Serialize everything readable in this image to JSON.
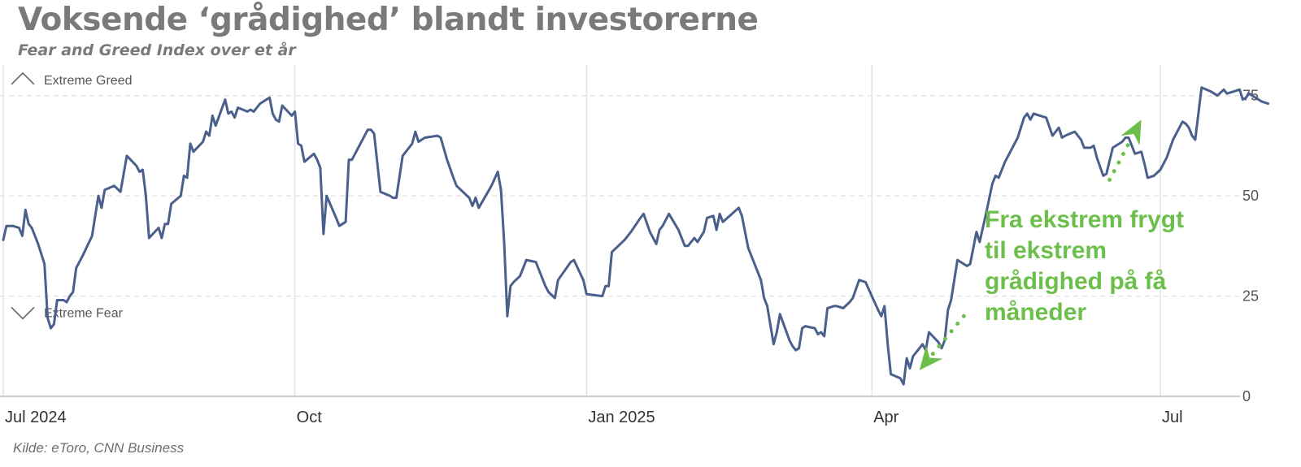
{
  "header": {
    "title": "Voksende ‘grådighed’ blandt investorerne",
    "subtitle": "Fear and Greed Index over et år"
  },
  "footer": {
    "source": "Kilde: eToro, CNN Business"
  },
  "colors": {
    "line": "#4a5f8b",
    "annotation": "#6cbf4a",
    "grid": "#e3e3e3",
    "title": "#7a7a7a"
  },
  "chart_data": {
    "type": "line",
    "title": "Voksende ‘grådighed’ blandt investorerne",
    "subtitle": "Fear and Greed Index over et år",
    "xlabel": "",
    "ylabel": "",
    "ylim": [
      0,
      80
    ],
    "xlim": [
      "2024-07-01",
      "2025-07-28"
    ],
    "y_ticks": [
      0,
      25,
      50,
      75
    ],
    "y_axis_side": "right",
    "x_ticks": [
      {
        "date": "2024-07-01",
        "label": "Jul 2024"
      },
      {
        "date": "2024-10-01",
        "label": "Oct"
      },
      {
        "date": "2025-01-01",
        "label": "Jan 2025"
      },
      {
        "date": "2025-04-01",
        "label": "Apr"
      },
      {
        "date": "2025-07-01",
        "label": "Jul"
      }
    ],
    "grid": {
      "vertical": true,
      "horizontal_dashed": true
    },
    "zones": [
      {
        "label": "Extreme Greed",
        "icon": "chevron-up-icon",
        "y": 79
      },
      {
        "label": "Extreme Fear",
        "icon": "chevron-down-icon",
        "y": 21
      }
    ],
    "annotation": {
      "lines": [
        "Fra ekstrem frygt",
        "til ekstrem",
        "grådighed på få",
        "måneder"
      ],
      "arrows": [
        {
          "from": [
            "2025-04-30",
            20
          ],
          "to": [
            "2025-04-16",
            6.5
          ]
        },
        {
          "from": [
            "2025-06-15",
            54
          ],
          "to": [
            "2025-06-25",
            69
          ]
        }
      ]
    },
    "series": [
      {
        "points": [
          [
            "2024-07-01",
            39
          ],
          [
            "2024-07-02",
            42.5
          ],
          [
            "2024-07-04",
            42.5
          ],
          [
            "2024-07-06",
            42
          ],
          [
            "2024-07-07",
            40
          ],
          [
            "2024-07-08",
            46.5
          ],
          [
            "2024-07-09",
            43
          ],
          [
            "2024-07-10",
            42
          ],
          [
            "2024-07-12",
            38
          ],
          [
            "2024-07-14",
            33
          ],
          [
            "2024-07-15",
            19.5
          ],
          [
            "2024-07-16",
            17
          ],
          [
            "2024-07-17",
            18
          ],
          [
            "2024-07-18",
            24
          ],
          [
            "2024-07-20",
            24
          ],
          [
            "2024-07-21",
            23.5
          ],
          [
            "2024-07-22",
            25
          ],
          [
            "2024-07-23",
            26
          ],
          [
            "2024-07-24",
            32
          ],
          [
            "2024-07-26",
            35
          ],
          [
            "2024-07-29",
            40
          ],
          [
            "2024-07-31",
            50
          ],
          [
            "2024-08-01",
            47
          ],
          [
            "2024-08-02",
            51.5
          ],
          [
            "2024-08-05",
            52.5
          ],
          [
            "2024-08-07",
            51
          ],
          [
            "2024-08-09",
            60
          ],
          [
            "2024-08-12",
            57.5
          ],
          [
            "2024-08-13",
            56
          ],
          [
            "2024-08-14",
            56.5
          ],
          [
            "2024-08-15",
            50
          ],
          [
            "2024-08-16",
            39.5
          ],
          [
            "2024-08-19",
            42
          ],
          [
            "2024-08-20",
            39.5
          ],
          [
            "2024-08-21",
            43
          ],
          [
            "2024-08-22",
            43
          ],
          [
            "2024-08-23",
            48
          ],
          [
            "2024-08-26",
            50
          ],
          [
            "2024-08-27",
            55
          ],
          [
            "2024-08-28",
            54.5
          ],
          [
            "2024-08-29",
            63
          ],
          [
            "2024-08-30",
            61
          ],
          [
            "2024-09-02",
            63.5
          ],
          [
            "2024-09-03",
            66
          ],
          [
            "2024-09-04",
            65
          ],
          [
            "2024-09-05",
            70
          ],
          [
            "2024-09-06",
            67.5
          ],
          [
            "2024-09-09",
            74
          ],
          [
            "2024-09-10",
            70.5
          ],
          [
            "2024-09-11",
            71
          ],
          [
            "2024-09-12",
            69.5
          ],
          [
            "2024-09-13",
            72
          ],
          [
            "2024-09-16",
            71
          ],
          [
            "2024-09-17",
            71.5
          ],
          [
            "2024-09-18",
            71
          ],
          [
            "2024-09-20",
            73
          ],
          [
            "2024-09-23",
            74.5
          ],
          [
            "2024-09-24",
            70.5
          ],
          [
            "2024-09-25",
            69
          ],
          [
            "2024-09-26",
            68.5
          ],
          [
            "2024-09-27",
            72.5
          ],
          [
            "2024-09-30",
            70
          ],
          [
            "2024-10-01",
            71
          ],
          [
            "2024-10-02",
            63
          ],
          [
            "2024-10-03",
            62.5
          ],
          [
            "2024-10-04",
            58.5
          ],
          [
            "2024-10-07",
            60.5
          ],
          [
            "2024-10-08",
            59
          ],
          [
            "2024-10-09",
            57
          ],
          [
            "2024-10-10",
            40.5
          ],
          [
            "2024-10-11",
            50
          ],
          [
            "2024-10-14",
            44.5
          ],
          [
            "2024-10-15",
            42.5
          ],
          [
            "2024-10-17",
            43.5
          ],
          [
            "2024-10-18",
            59
          ],
          [
            "2024-10-19",
            59
          ],
          [
            "2024-10-21",
            62
          ],
          [
            "2024-10-24",
            66.5
          ],
          [
            "2024-10-25",
            66.5
          ],
          [
            "2024-10-26",
            65.5
          ],
          [
            "2024-10-28",
            51
          ],
          [
            "2024-10-31",
            50
          ],
          [
            "2024-11-01",
            49.5
          ],
          [
            "2024-11-02",
            49.5
          ],
          [
            "2024-11-04",
            60
          ],
          [
            "2024-11-07",
            63
          ],
          [
            "2024-11-08",
            66
          ],
          [
            "2024-11-09",
            63.5
          ],
          [
            "2024-11-11",
            64.5
          ],
          [
            "2024-11-15",
            65
          ],
          [
            "2024-11-16",
            64.5
          ],
          [
            "2024-11-18",
            59
          ],
          [
            "2024-11-20",
            54.5
          ],
          [
            "2024-11-21",
            52.5
          ],
          [
            "2024-11-25",
            49.5
          ],
          [
            "2024-11-26",
            47.5
          ],
          [
            "2024-11-27",
            49.5
          ],
          [
            "2024-11-28",
            47
          ],
          [
            "2024-12-02",
            52.5
          ],
          [
            "2024-12-04",
            56
          ],
          [
            "2024-12-05",
            51.5
          ],
          [
            "2024-12-06",
            38.5
          ],
          [
            "2024-12-07",
            20
          ],
          [
            "2024-12-08",
            27.5
          ],
          [
            "2024-12-09",
            28.5
          ],
          [
            "2024-12-11",
            30
          ],
          [
            "2024-12-13",
            34
          ],
          [
            "2024-12-16",
            33.5
          ],
          [
            "2024-12-17",
            31.5
          ],
          [
            "2024-12-19",
            27.5
          ],
          [
            "2024-12-20",
            26
          ],
          [
            "2024-12-22",
            24.5
          ],
          [
            "2024-12-23",
            29
          ],
          [
            "2024-12-27",
            33.5
          ],
          [
            "2024-12-28",
            34
          ],
          [
            "2024-12-31",
            29
          ],
          [
            "2025-01-01",
            25.5
          ],
          [
            "2025-01-06",
            25
          ],
          [
            "2025-01-07",
            27.5
          ],
          [
            "2025-01-08",
            27.5
          ],
          [
            "2025-01-09",
            36
          ],
          [
            "2025-01-13",
            39
          ],
          [
            "2025-01-15",
            41
          ],
          [
            "2025-01-18",
            44.5
          ],
          [
            "2025-01-19",
            45.5
          ],
          [
            "2025-01-21",
            41
          ],
          [
            "2025-01-23",
            38
          ],
          [
            "2025-01-24",
            41.5
          ],
          [
            "2025-01-25",
            42.5
          ],
          [
            "2025-01-27",
            45.5
          ],
          [
            "2025-01-30",
            41.5
          ],
          [
            "2025-02-01",
            37.5
          ],
          [
            "2025-02-02",
            37.5
          ],
          [
            "2025-02-04",
            39.5
          ],
          [
            "2025-02-05",
            38.5
          ],
          [
            "2025-02-07",
            41
          ],
          [
            "2025-02-08",
            44.5
          ],
          [
            "2025-02-10",
            45
          ],
          [
            "2025-02-11",
            41.5
          ],
          [
            "2025-02-12",
            45.5
          ],
          [
            "2025-02-13",
            43.5
          ],
          [
            "2025-02-18",
            47
          ],
          [
            "2025-02-19",
            45
          ],
          [
            "2025-02-21",
            37
          ],
          [
            "2025-02-25",
            29
          ],
          [
            "2025-02-26",
            24.5
          ],
          [
            "2025-02-27",
            22.5
          ],
          [
            "2025-03-01",
            13
          ],
          [
            "2025-03-02",
            16
          ],
          [
            "2025-03-03",
            20.5
          ],
          [
            "2025-03-06",
            14
          ],
          [
            "2025-03-07",
            12.5
          ],
          [
            "2025-03-08",
            11.5
          ],
          [
            "2025-03-09",
            12
          ],
          [
            "2025-03-10",
            17
          ],
          [
            "2025-03-11",
            17.5
          ],
          [
            "2025-03-14",
            17
          ],
          [
            "2025-03-15",
            15.5
          ],
          [
            "2025-03-16",
            16
          ],
          [
            "2025-03-17",
            15
          ],
          [
            "2025-03-18",
            22
          ],
          [
            "2025-03-20",
            22.5
          ],
          [
            "2025-03-21",
            22.5
          ],
          [
            "2025-03-23",
            22
          ],
          [
            "2025-03-25",
            23.5
          ],
          [
            "2025-03-26",
            24.5
          ],
          [
            "2025-03-28",
            29
          ],
          [
            "2025-03-30",
            28.5
          ],
          [
            "2025-04-03",
            21.5
          ],
          [
            "2025-04-04",
            20
          ],
          [
            "2025-04-05",
            22.5
          ],
          [
            "2025-04-06",
            13
          ],
          [
            "2025-04-07",
            5.5
          ],
          [
            "2025-04-10",
            4.5
          ],
          [
            "2025-04-11",
            3
          ],
          [
            "2025-04-12",
            9.5
          ],
          [
            "2025-04-13",
            7
          ],
          [
            "2025-04-14",
            10
          ],
          [
            "2025-04-16",
            12
          ],
          [
            "2025-04-17",
            13
          ],
          [
            "2025-04-18",
            11.5
          ],
          [
            "2025-04-19",
            16
          ],
          [
            "2025-04-22",
            13.5
          ],
          [
            "2025-04-23",
            12
          ],
          [
            "2025-04-24",
            14
          ],
          [
            "2025-04-25",
            21.5
          ],
          [
            "2025-04-26",
            24
          ],
          [
            "2025-04-28",
            34
          ],
          [
            "2025-05-01",
            32.5
          ],
          [
            "2025-05-02",
            33
          ],
          [
            "2025-05-04",
            41
          ],
          [
            "2025-05-05",
            38.5
          ],
          [
            "2025-05-07",
            45.5
          ],
          [
            "2025-05-09",
            53
          ],
          [
            "2025-05-10",
            55
          ],
          [
            "2025-05-11",
            54.5
          ],
          [
            "2025-05-13",
            58.5
          ],
          [
            "2025-05-14",
            60
          ],
          [
            "2025-05-17",
            64.5
          ],
          [
            "2025-05-19",
            69.5
          ],
          [
            "2025-05-20",
            70.5
          ],
          [
            "2025-05-21",
            69
          ],
          [
            "2025-05-22",
            70.5
          ],
          [
            "2025-05-24",
            70
          ],
          [
            "2025-05-26",
            69.5
          ],
          [
            "2025-05-28",
            65
          ],
          [
            "2025-05-30",
            67
          ],
          [
            "2025-05-31",
            64.5
          ],
          [
            "2025-06-01",
            65
          ],
          [
            "2025-06-04",
            66
          ],
          [
            "2025-06-06",
            64
          ],
          [
            "2025-06-07",
            62
          ],
          [
            "2025-06-09",
            62
          ],
          [
            "2025-06-10",
            62.5
          ],
          [
            "2025-06-11",
            59.5
          ],
          [
            "2025-06-13",
            55
          ],
          [
            "2025-06-14",
            55.5
          ],
          [
            "2025-06-16",
            62
          ],
          [
            "2025-06-19",
            63.5
          ],
          [
            "2025-06-20",
            64.5
          ],
          [
            "2025-06-21",
            64.5
          ],
          [
            "2025-06-23",
            60.5
          ],
          [
            "2025-06-25",
            61
          ],
          [
            "2025-06-26",
            58
          ],
          [
            "2025-06-27",
            54.5
          ],
          [
            "2025-06-29",
            55
          ],
          [
            "2025-07-01",
            56.5
          ],
          [
            "2025-07-03",
            59.5
          ],
          [
            "2025-07-05",
            64
          ],
          [
            "2025-07-07",
            67
          ],
          [
            "2025-07-08",
            68.5
          ],
          [
            "2025-07-09",
            68
          ],
          [
            "2025-07-10",
            67
          ],
          [
            "2025-07-11",
            65
          ],
          [
            "2025-07-12",
            64
          ],
          [
            "2025-07-14",
            77
          ],
          [
            "2025-07-17",
            76
          ],
          [
            "2025-07-19",
            75
          ],
          [
            "2025-07-21",
            76.5
          ],
          [
            "2025-07-22",
            75.5
          ],
          [
            "2025-07-24",
            76
          ],
          [
            "2025-07-26",
            76.5
          ],
          [
            "2025-07-27",
            74
          ],
          [
            "2025-07-28",
            74.5
          ],
          [
            "2025-07-29",
            75.5
          ],
          [
            "2025-07-31",
            74.5
          ],
          [
            "2025-08-02",
            73.5
          ],
          [
            "2025-08-04",
            73
          ]
        ]
      }
    ]
  }
}
